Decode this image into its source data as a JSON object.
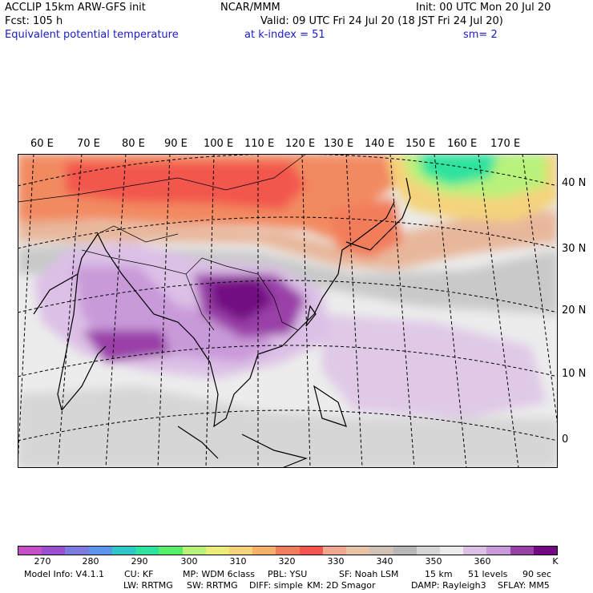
{
  "header": {
    "line1_left": "ACCLIP 15km ARW-GFS init",
    "line1_center": "NCAR/MMM",
    "line1_right": "Init: 00 UTC Mon 20 Jul 20",
    "line2_left": "Fcst:  105 h",
    "line2_right": "Valid: 09 UTC Fri 24 Jul 20 (18 JST Fri 24 Jul 20)",
    "line3_field": "Equivalent potential temperature",
    "line3_level": "at k-index =  51",
    "line3_smooth": "sm= 2"
  },
  "map": {
    "lon_labels": [
      "60 E",
      "70 E",
      "80 E",
      "90 E",
      "100 E",
      "110 E",
      "120 E",
      "130 E",
      "140 E",
      "150 E",
      "160 E",
      "170 E"
    ],
    "lat_labels": [
      "40 N",
      "30 N",
      "20 N",
      "10 N",
      "0"
    ]
  },
  "colorbar": {
    "colors": [
      "#c54fc6",
      "#9b4fd0",
      "#7b7be0",
      "#5a97ec",
      "#2fc7c7",
      "#2ee39d",
      "#57ef6a",
      "#b8f27a",
      "#ecec7a",
      "#f4d37c",
      "#f6b06a",
      "#f27d5a",
      "#f2564d",
      "#f2a890",
      "#e8c3a4",
      "#d0c2b4",
      "#b8b8b8",
      "#d6d6d6",
      "#ececec",
      "#dcc0e6",
      "#c99ad9",
      "#9a41a8",
      "#720882"
    ],
    "ticks": [
      "270",
      "280",
      "290",
      "300",
      "310",
      "320",
      "330",
      "340",
      "350",
      "360"
    ],
    "unit": "K"
  },
  "footer": {
    "line1": [
      "Model Info: V4.1.1",
      "CU: KF",
      "MP: WDM 6class",
      "PBL: YSU",
      "SF: Noah LSM",
      "15 km",
      "51 levels",
      "90 sec"
    ],
    "line2": [
      "LW: RRTMG",
      "SW: RRTMG",
      "DIFF: simple",
      "KM: 2D Smagor",
      "DAMP: Rayleigh3",
      "SFLAY: MM5"
    ]
  }
}
